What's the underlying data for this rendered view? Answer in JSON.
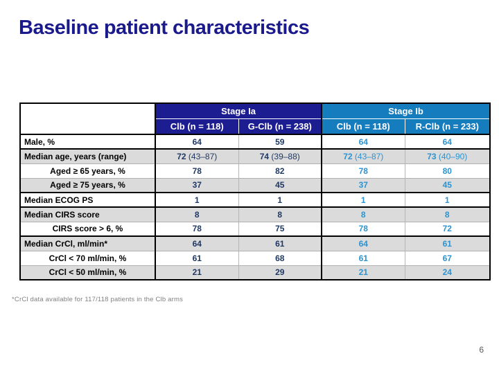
{
  "slide": {
    "title": "Baseline patient characteristics",
    "footnote": "*CrCl data available for 117/118 patients in the Clb arms",
    "page_number": "6"
  },
  "colors": {
    "title_text": "#1A1A8C",
    "stage_ia_header_bg": "#1D1D92",
    "stage_ib_header_bg": "#157CBE",
    "stage_ia_value_text": "#1F3864",
    "stage_ib_value_text": "#2B93D1",
    "shaded_row_bg": "#DBDBDB"
  },
  "table": {
    "column_groups": [
      {
        "label": "Stage Ia",
        "subcolumns": [
          "Clb (n = 118)",
          "G-Clb (n = 238)"
        ]
      },
      {
        "label": "Stage Ib",
        "subcolumns": [
          "Clb (n = 118)",
          "R-Clb (n = 233)"
        ]
      }
    ],
    "rows": [
      {
        "label": "Male, %",
        "indent": false,
        "shaded": false,
        "group_end": true,
        "values": [
          "64",
          "59",
          "64",
          "64"
        ]
      },
      {
        "label": "Median age, years (range)",
        "indent": false,
        "shaded": true,
        "group_end": false,
        "values": [
          "72 (43–87)",
          "74 (39–88)",
          "72 (43–87)",
          "73 (40–90)"
        ]
      },
      {
        "label": "Aged ≥ 65 years, %",
        "indent": true,
        "shaded": false,
        "group_end": false,
        "values": [
          "78",
          "82",
          "78",
          "80"
        ]
      },
      {
        "label": "Aged ≥ 75 years, %",
        "indent": true,
        "shaded": true,
        "group_end": true,
        "values": [
          "37",
          "45",
          "37",
          "45"
        ]
      },
      {
        "label": "Median ECOG PS",
        "indent": false,
        "shaded": false,
        "group_end": true,
        "values": [
          "1",
          "1",
          "1",
          "1"
        ]
      },
      {
        "label": "Median CIRS score",
        "indent": false,
        "shaded": true,
        "group_end": false,
        "values": [
          "8",
          "8",
          "8",
          "8"
        ]
      },
      {
        "label": "CIRS score > 6, %",
        "indent": true,
        "shaded": false,
        "group_end": true,
        "values": [
          "78",
          "75",
          "78",
          "72"
        ]
      },
      {
        "label": "Median CrCl, ml/min*",
        "indent": false,
        "shaded": true,
        "group_end": false,
        "values": [
          "64",
          "61",
          "64",
          "61"
        ]
      },
      {
        "label": "CrCl < 70 ml/min, %",
        "indent": true,
        "shaded": false,
        "group_end": false,
        "values": [
          "61",
          "68",
          "61",
          "67"
        ]
      },
      {
        "label": "CrCl < 50 ml/min, %",
        "indent": true,
        "shaded": true,
        "group_end": true,
        "values": [
          "21",
          "29",
          "21",
          "24"
        ]
      }
    ]
  }
}
